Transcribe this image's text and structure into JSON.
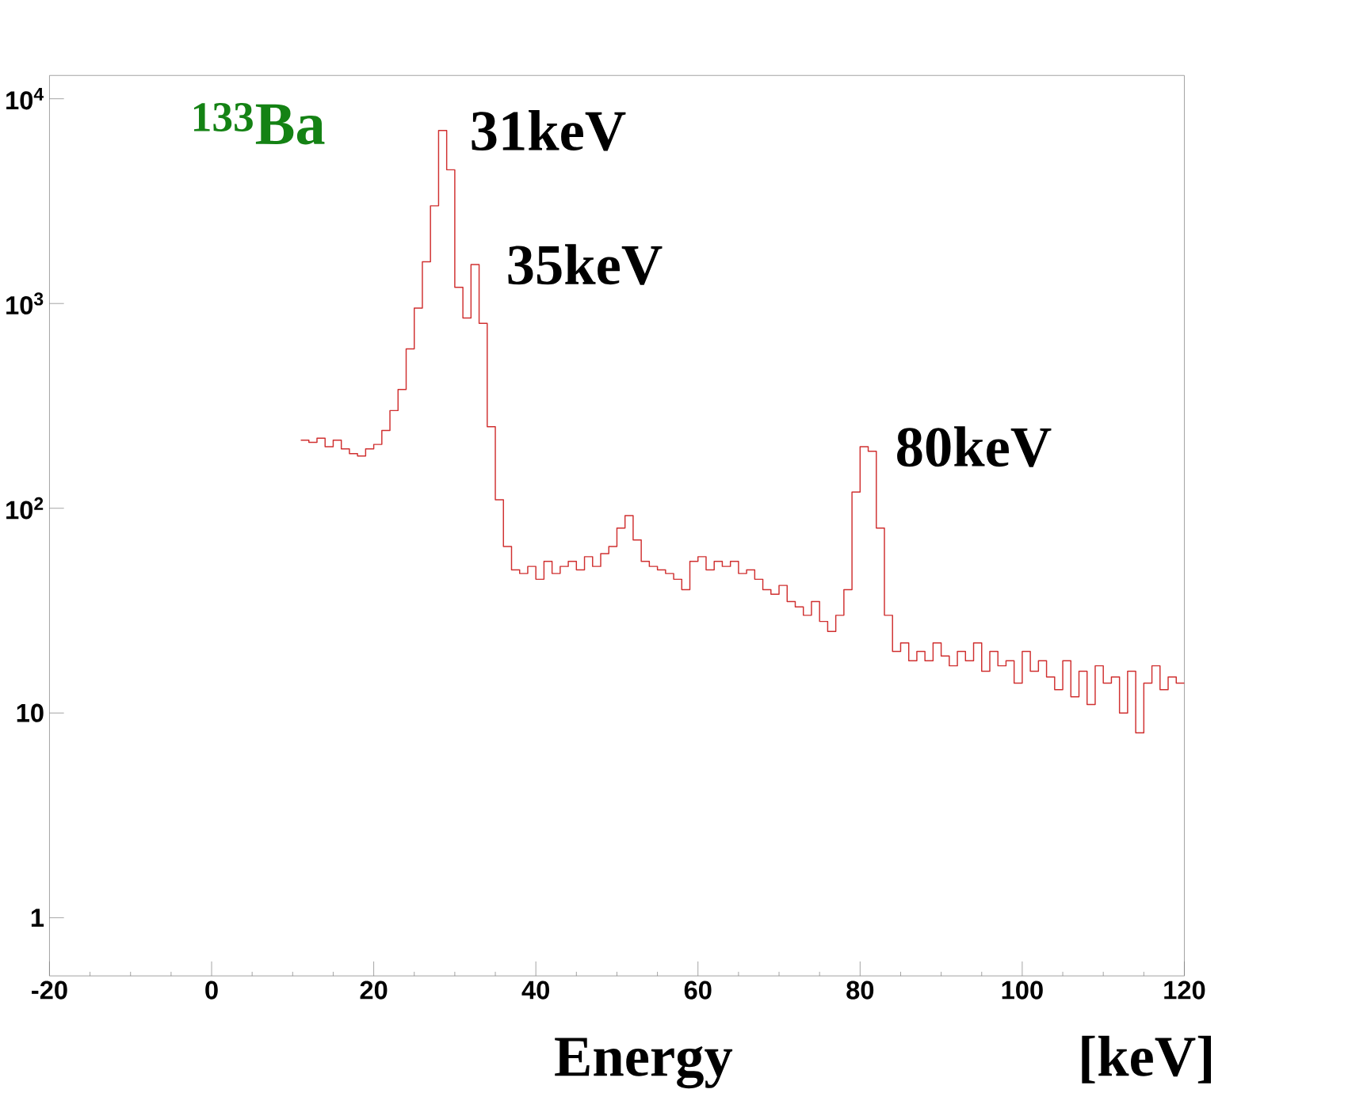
{
  "chart_data": {
    "type": "histogram",
    "title": "$^{133}$Ba",
    "xlabel": "Energy [keV]",
    "bins": [
      11,
      12,
      13,
      14,
      15,
      16,
      17,
      18,
      19,
      20,
      21,
      22,
      23,
      24,
      25,
      26,
      27,
      28,
      29,
      30,
      31,
      32,
      33,
      34,
      35,
      36,
      37,
      38,
      39,
      40,
      41,
      42,
      43,
      44,
      45,
      46,
      47,
      48,
      49,
      50,
      51,
      52,
      53,
      54,
      55,
      56,
      57,
      58,
      59,
      60,
      61,
      62,
      63,
      64,
      65,
      66,
      67,
      68,
      69,
      70,
      71,
      72,
      73,
      74,
      75,
      76,
      77,
      78,
      79,
      80,
      81,
      82,
      83,
      84,
      85,
      86,
      87,
      88,
      89,
      90,
      91,
      92,
      93,
      94,
      95,
      96,
      97,
      98,
      99,
      100,
      101,
      102,
      103,
      104,
      105,
      106,
      107,
      108,
      109,
      110,
      111,
      112,
      113,
      114,
      115,
      116,
      117,
      118,
      119,
      120
    ],
    "values": [
      215,
      210,
      220,
      200,
      215,
      195,
      185,
      180,
      195,
      205,
      240,
      300,
      380,
      600,
      950,
      1600,
      3000,
      7000,
      4500,
      1200,
      850,
      1550,
      800,
      250,
      110,
      65,
      50,
      48,
      52,
      45,
      55,
      48,
      52,
      55,
      50,
      58,
      52,
      60,
      65,
      80,
      92,
      70,
      55,
      52,
      50,
      48,
      45,
      40,
      55,
      58,
      50,
      55,
      52,
      55,
      48,
      50,
      45,
      40,
      38,
      42,
      35,
      33,
      30,
      35,
      28,
      25,
      30,
      40,
      120,
      200,
      190,
      80,
      30,
      20,
      22,
      18,
      20,
      18,
      22,
      19,
      17,
      20,
      18,
      22,
      16,
      20,
      17,
      18,
      14,
      20,
      16,
      18,
      15,
      13,
      18,
      12,
      16,
      11,
      17,
      14,
      15,
      10,
      16,
      8,
      14,
      17,
      13,
      15,
      14
    ],
    "color": "#d03030",
    "log": "y",
    "xlim": [
      -20,
      120
    ],
    "ylim": [
      0.52,
      13000
    ],
    "xticks": [
      -20,
      0,
      20,
      40,
      60,
      80,
      100,
      120
    ],
    "yticks": [
      1,
      10,
      {
        "value": 100,
        "label": "10$^{2}$"
      },
      {
        "value": 1000,
        "label": "10$^{3}$"
      },
      {
        "value": 10000,
        "label": "10$^{4}$"
      }
    ],
    "annotations": [
      {
        "text": "31keV",
        "x": 28,
        "y": 7000
      },
      {
        "text": "35keV",
        "x": 32.5,
        "y": 1550
      },
      {
        "text": "80keV",
        "x": 80.5,
        "y": 200
      }
    ]
  }
}
